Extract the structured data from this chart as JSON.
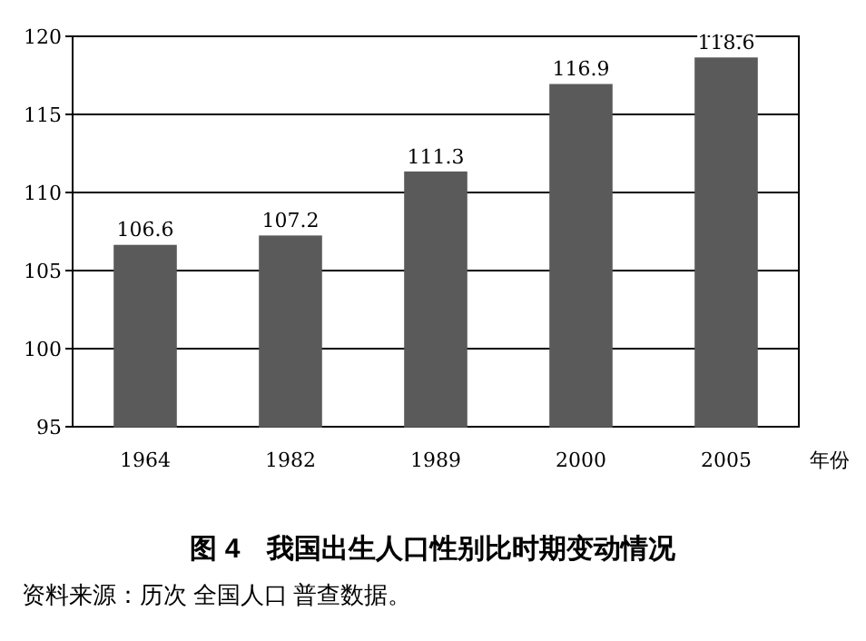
{
  "chart_data": {
    "type": "bar",
    "title": "图 4　我国出生人口性别比时期变动情况",
    "xlabel": "年份",
    "annotations": [
      "资料来源：历次 全国人口 普查数据。"
    ],
    "categories": [
      "1964",
      "1982",
      "1989",
      "2000",
      "2005"
    ],
    "values": [
      106.6,
      107.2,
      111.3,
      116.9,
      118.6
    ],
    "color": "#5a5a5a",
    "ylim": [
      95,
      120
    ],
    "yticks": [
      95,
      100,
      105,
      110,
      115,
      120
    ],
    "grid": "y",
    "data_labels": true
  }
}
